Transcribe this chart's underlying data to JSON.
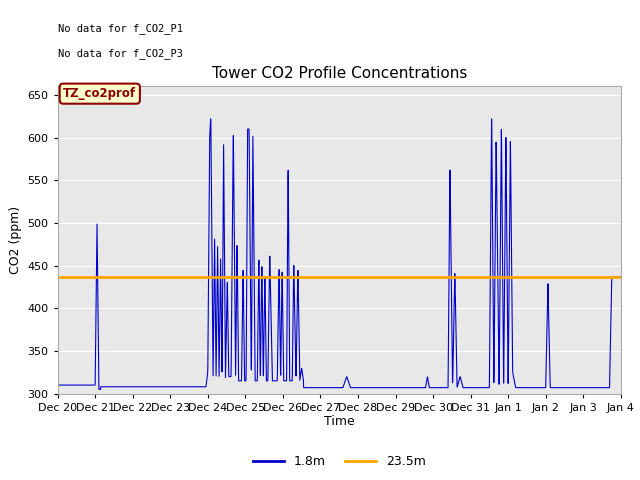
{
  "title": "Tower CO2 Profile Concentrations",
  "xlabel": "Time",
  "ylabel": "CO2 (ppm)",
  "ylim": [
    300,
    660
  ],
  "yticks": [
    300,
    350,
    400,
    450,
    500,
    550,
    600,
    650
  ],
  "fig_bg_color": "#ffffff",
  "plot_bg_color": "#e8e8e8",
  "line1_color": "#0000cc",
  "line2_color": "#ffa500",
  "line2_value": 437,
  "legend_labels": [
    "1.8m",
    "23.5m"
  ],
  "annotation_text1": "No data for f_CO2_P1",
  "annotation_text2": "No data for f_CO2_P3",
  "box_label": "TZ_co2prof",
  "xtick_labels": [
    "Dec 20",
    "Dec 21",
    "Dec 22",
    "Dec 23",
    "Dec 24",
    "Dec 25",
    "Dec 26",
    "Dec 27",
    "Dec 28",
    "Dec 29",
    "Dec 30",
    "Dec 31",
    "Jan 1",
    "Jan 2",
    "Jan 3",
    "Jan 4"
  ]
}
